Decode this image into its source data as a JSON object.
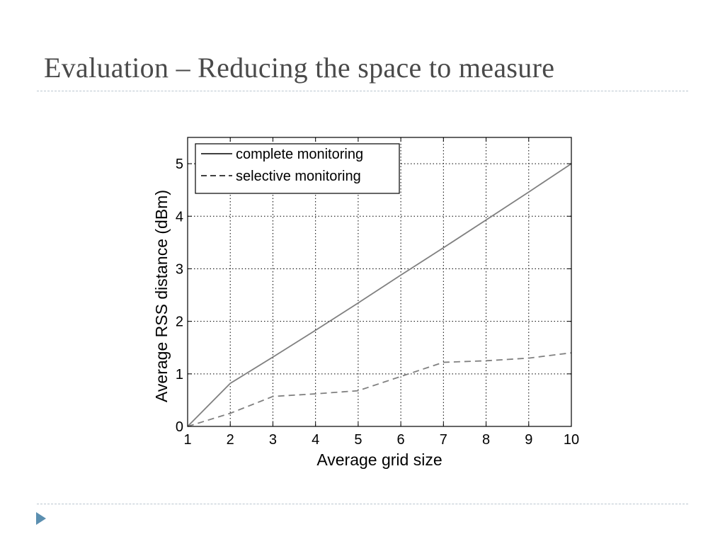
{
  "slide": {
    "title": "Evaluation – Reducing the space to measure",
    "colors": {
      "title": "#4a4a4a",
      "rule": "#b9c6cf",
      "bullet": "#5b8fb0"
    }
  },
  "chart_data": {
    "type": "line",
    "xlabel": "Average grid size",
    "ylabel": "Average RSS distance (dBm)",
    "xlim": [
      1,
      10
    ],
    "ylim": [
      0,
      5.5
    ],
    "xticks": [
      1,
      2,
      3,
      4,
      5,
      6,
      7,
      8,
      9,
      10
    ],
    "yticks": [
      0,
      1,
      2,
      3,
      4,
      5
    ],
    "grid": true,
    "legend_position": "top-left",
    "series": [
      {
        "name": "complete monitoring",
        "style": "solid",
        "color": "#808080",
        "x": [
          1,
          2,
          3,
          4,
          5,
          6,
          7,
          8,
          9,
          10
        ],
        "y": [
          0,
          0.82,
          1.32,
          1.83,
          2.35,
          2.88,
          3.4,
          3.93,
          4.46,
          5.0
        ]
      },
      {
        "name": "selective monitoring",
        "style": "dashed",
        "color": "#808080",
        "x": [
          1,
          2,
          3,
          4,
          5,
          6,
          7,
          8,
          9,
          10
        ],
        "y": [
          0,
          0.25,
          0.57,
          0.62,
          0.68,
          0.95,
          1.22,
          1.25,
          1.3,
          1.4
        ]
      }
    ]
  }
}
